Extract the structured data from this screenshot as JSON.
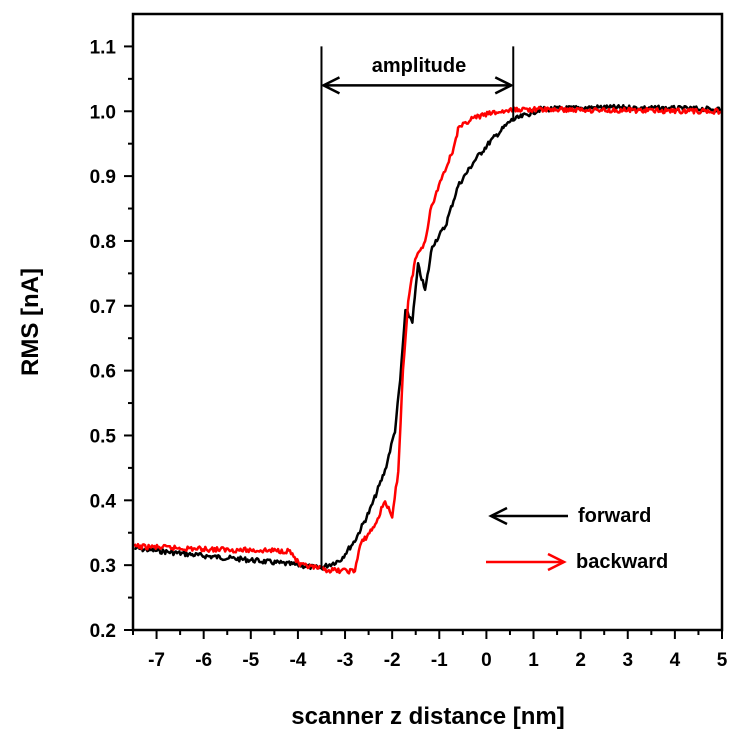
{
  "chart_data": {
    "type": "line",
    "title": "",
    "xlabel": "scanner z distance [nm]",
    "ylabel": "RMS [nA]",
    "xlim": [
      -7.5,
      5
    ],
    "ylim": [
      0.2,
      1.15
    ],
    "xticks": [
      -7,
      -6,
      -5,
      -4,
      -3,
      -2,
      -1,
      0,
      1,
      2,
      3,
      4,
      5
    ],
    "yticks": [
      0.2,
      0.3,
      0.4,
      0.5,
      0.6,
      0.7,
      0.8,
      0.9,
      1.0,
      1.1
    ],
    "xtick_labels": [
      "-7",
      "-6",
      "-5",
      "-4",
      "-3",
      "-2",
      "-1",
      "0",
      "1",
      "2",
      "3",
      "4",
      "5"
    ],
    "ytick_labels": [
      "0.2",
      "0.3",
      "0.4",
      "0.5",
      "0.6",
      "0.7",
      "0.8",
      "0.9",
      "1.0",
      "1.1"
    ],
    "grid": false,
    "legend_placement": "bottom-right",
    "series": [
      {
        "name": "forward",
        "color": "#000000",
        "direction": "left",
        "x": [
          -7.47,
          -6.09,
          -5.02,
          -3.96,
          -3.53,
          -3.1,
          -2.79,
          -2.47,
          -2.15,
          -1.94,
          -1.83,
          -1.72,
          -1.57,
          -1.45,
          -1.3,
          -1.15,
          -0.87,
          -0.6,
          -0.23,
          0.09,
          0.51,
          1.15,
          2.43,
          4.98
        ],
        "y": [
          0.326,
          0.315,
          0.308,
          0.3,
          0.295,
          0.308,
          0.338,
          0.385,
          0.446,
          0.508,
          0.585,
          0.692,
          0.677,
          0.762,
          0.723,
          0.792,
          0.823,
          0.885,
          0.926,
          0.954,
          0.985,
          1.003,
          1.006,
          1.003
        ]
      },
      {
        "name": "backward",
        "color": "#ff0000",
        "direction": "right",
        "x": [
          -7.47,
          -6.09,
          -5.02,
          -4.17,
          -3.96,
          -3.32,
          -2.79,
          -2.68,
          -2.36,
          -2.15,
          -2.0,
          -1.87,
          -1.77,
          -1.66,
          -1.51,
          -1.3,
          -1.19,
          -0.98,
          -0.72,
          -0.6,
          -0.34,
          0.09,
          0.72,
          4.98
        ],
        "y": [
          0.329,
          0.325,
          0.323,
          0.322,
          0.3,
          0.292,
          0.291,
          0.331,
          0.362,
          0.4,
          0.372,
          0.446,
          0.6,
          0.708,
          0.772,
          0.8,
          0.846,
          0.892,
          0.938,
          0.972,
          0.988,
          0.997,
          1.003,
          1.0
        ]
      }
    ],
    "annotations": {
      "amplitude": {
        "label": "amplitude",
        "x_start": -3.5,
        "x_end": 0.57,
        "y": 1.04,
        "line_top": 1.1,
        "left_line_bottom": 0.295,
        "right_line_bottom": 0.985
      }
    }
  }
}
